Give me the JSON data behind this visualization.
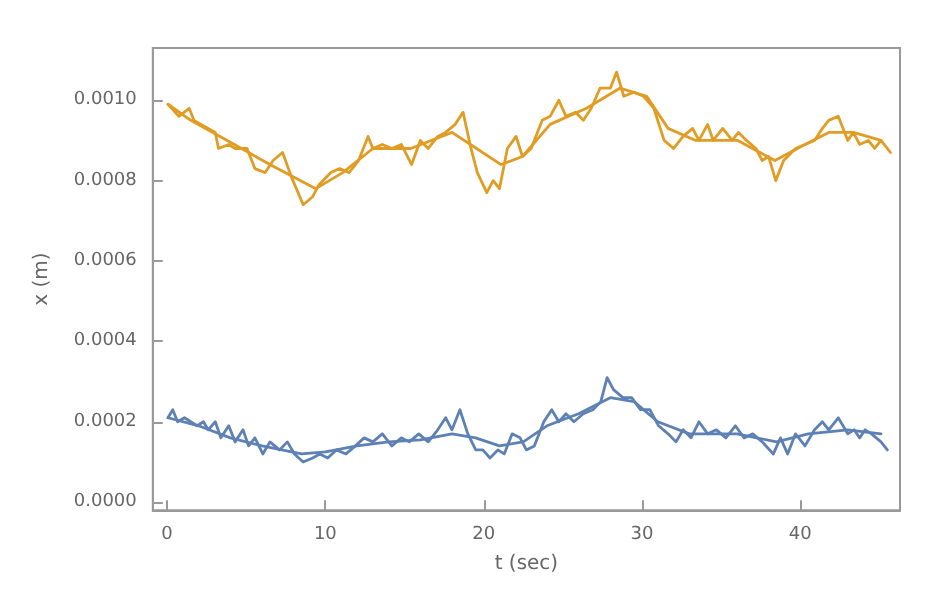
{
  "chart_data": {
    "type": "line",
    "xlabel": "t (sec)",
    "ylabel": "x (m)",
    "xlim": [
      -0.9,
      46.3
    ],
    "ylim": [
      -2e-05,
      0.00113
    ],
    "xticks": [
      0,
      10,
      20,
      30,
      40
    ],
    "yticks": [
      {
        "value": 0,
        "label": "0.0000"
      },
      {
        "value": 0.0002,
        "label": "0.0002"
      },
      {
        "value": 0.0004,
        "label": "0.0004"
      },
      {
        "value": 0.0006,
        "label": "0.0006"
      },
      {
        "value": 0.0008,
        "label": "0.0008"
      },
      {
        "value": 0.001,
        "label": "0.0010"
      }
    ],
    "grid": false,
    "marker": "none",
    "line_style": "solid",
    "series": [
      {
        "color": "#e19c24",
        "x": [
          0.06,
          0.75,
          1.4,
          1.7,
          3.05,
          3.25,
          3.9,
          4.3,
          5.05,
          5.55,
          6.2,
          6.7,
          7.3,
          7.85,
          8.6,
          9.2,
          9.6,
          10.35,
          10.9,
          11.5,
          12.1,
          12.7,
          13.0,
          13.6,
          14.2,
          14.8,
          15.45,
          16.0,
          16.5,
          17.1,
          17.6,
          18.2,
          18.7,
          19.2,
          19.6,
          20.2,
          20.6,
          21.0,
          21.5,
          22.05,
          22.45,
          23.0,
          23.7,
          24.2,
          24.75,
          25.2,
          25.8,
          26.3,
          26.8,
          27.35,
          28.0,
          28.4,
          28.85,
          29.5,
          30.1,
          30.75,
          31.4,
          32.0,
          32.6,
          33.2,
          33.6,
          34.15,
          34.5,
          35.1,
          35.7,
          36.1,
          36.6,
          37.2,
          37.6,
          38.0,
          38.45,
          38.95,
          39.7,
          40.3,
          40.9,
          41.4,
          41.8,
          42.4,
          43.0,
          43.35,
          43.75,
          44.3,
          44.7,
          45.1,
          45.7
        ],
        "values": [
          0.00099,
          0.00096,
          0.00098,
          0.00095,
          0.00092,
          0.00088,
          0.00089,
          0.00088,
          0.00088,
          0.00083,
          0.00082,
          0.00085,
          0.00087,
          0.00081,
          0.00074,
          0.00076,
          0.00079,
          0.00082,
          0.00083,
          0.00082,
          0.00085,
          0.00091,
          0.00088,
          0.00089,
          0.00088,
          0.00089,
          0.00084,
          0.0009,
          0.00088,
          0.00091,
          0.00092,
          0.00094,
          0.00097,
          0.00088,
          0.00082,
          0.00077,
          0.0008,
          0.00078,
          0.00088,
          0.00091,
          0.00086,
          0.00088,
          0.00095,
          0.00096,
          0.001,
          0.00096,
          0.00097,
          0.00095,
          0.00098,
          0.00103,
          0.00103,
          0.00107,
          0.00101,
          0.00102,
          0.00101,
          0.00098,
          0.0009,
          0.00088,
          0.00091,
          0.00093,
          0.0009,
          0.00094,
          0.0009,
          0.00093,
          0.0009,
          0.00092,
          0.0009,
          0.00088,
          0.00085,
          0.00086,
          0.0008,
          0.00085,
          0.00088,
          0.00089,
          0.0009,
          0.00093,
          0.00095,
          0.00096,
          0.0009,
          0.00092,
          0.00089,
          0.0009,
          0.00088,
          0.0009,
          0.00087
        ]
      },
      {
        "color": "#e19c24",
        "x": [
          0.06,
          1.5,
          3.8,
          6.5,
          9.4,
          11.1,
          13.0,
          15.4,
          18.0,
          19.55,
          21.1,
          22.45,
          24.2,
          26.5,
          28.6,
          30.3,
          31.65,
          33.4,
          36.05,
          38.4,
          40.3,
          41.8,
          43.35,
          45.1
        ],
        "values": [
          0.00099,
          0.00095,
          0.0009,
          0.00084,
          0.00078,
          0.00082,
          0.00088,
          0.00088,
          0.00092,
          0.00088,
          0.00084,
          0.00086,
          0.00094,
          0.00098,
          0.00103,
          0.00101,
          0.00093,
          0.0009,
          0.0009,
          0.00085,
          0.00089,
          0.00092,
          0.00092,
          0.0009
        ]
      },
      {
        "color": "#5e81b5",
        "x": [
          0.06,
          0.36,
          0.67,
          1.1,
          1.5,
          1.9,
          2.3,
          2.6,
          3.05,
          3.4,
          3.9,
          4.3,
          4.8,
          5.15,
          5.55,
          6.05,
          6.5,
          7.1,
          7.6,
          8.05,
          8.6,
          9.2,
          9.65,
          10.15,
          10.7,
          11.3,
          11.9,
          12.45,
          13.0,
          13.6,
          14.2,
          14.8,
          15.3,
          15.9,
          16.5,
          17.1,
          17.6,
          18.0,
          18.5,
          19.0,
          19.5,
          19.95,
          20.4,
          20.9,
          21.3,
          21.8,
          22.3,
          22.7,
          23.2,
          23.8,
          24.3,
          24.75,
          25.2,
          25.7,
          26.3,
          26.9,
          27.4,
          27.8,
          28.2,
          28.8,
          29.35,
          29.9,
          30.5,
          31.05,
          31.65,
          32.15,
          32.6,
          33.1,
          33.6,
          34.15,
          34.7,
          35.3,
          35.9,
          36.45,
          37.0,
          37.6,
          38.3,
          38.75,
          39.2,
          39.7,
          40.3,
          40.9,
          41.4,
          41.8,
          42.4,
          43.0,
          43.4,
          43.75,
          44.1,
          44.5,
          45.1,
          45.5
        ],
        "values": [
          0.00021,
          0.00023,
          0.0002,
          0.00021,
          0.0002,
          0.00019,
          0.0002,
          0.00018,
          0.0002,
          0.00016,
          0.00019,
          0.00015,
          0.00018,
          0.00014,
          0.00016,
          0.00012,
          0.00015,
          0.00013,
          0.00015,
          0.00012,
          0.0001,
          0.00011,
          0.00012,
          0.00011,
          0.00013,
          0.00012,
          0.00014,
          0.00016,
          0.00015,
          0.00017,
          0.00014,
          0.00016,
          0.00015,
          0.00017,
          0.00015,
          0.00018,
          0.00021,
          0.00018,
          0.00023,
          0.00017,
          0.00013,
          0.00013,
          0.00011,
          0.00013,
          0.00012,
          0.00017,
          0.00016,
          0.00013,
          0.00014,
          0.0002,
          0.00023,
          0.0002,
          0.00022,
          0.0002,
          0.00022,
          0.00023,
          0.00025,
          0.00031,
          0.00028,
          0.00026,
          0.00026,
          0.00023,
          0.00023,
          0.00019,
          0.00017,
          0.00015,
          0.00018,
          0.00016,
          0.0002,
          0.00017,
          0.00018,
          0.00016,
          0.00019,
          0.00016,
          0.00017,
          0.00015,
          0.00012,
          0.00016,
          0.00012,
          0.00017,
          0.00014,
          0.00018,
          0.0002,
          0.00018,
          0.00021,
          0.00017,
          0.00018,
          0.00016,
          0.00018,
          0.00017,
          0.00015,
          0.00013
        ]
      },
      {
        "color": "#5e81b5",
        "x": [
          0.06,
          2,
          4,
          6,
          8.5,
          10,
          12,
          14,
          16,
          18,
          19.5,
          21,
          22.5,
          24,
          26,
          28,
          29.5,
          31,
          33,
          36,
          38.5,
          40.5,
          43,
          45.1
        ],
        "values": [
          0.00021,
          0.00019,
          0.00016,
          0.00014,
          0.00012,
          0.000125,
          0.00014,
          0.00015,
          0.000155,
          0.00017,
          0.00016,
          0.00014,
          0.00015,
          0.00019,
          0.00022,
          0.00026,
          0.00025,
          0.0002,
          0.00017,
          0.00017,
          0.00015,
          0.00017,
          0.00018,
          0.00017
        ]
      }
    ]
  }
}
